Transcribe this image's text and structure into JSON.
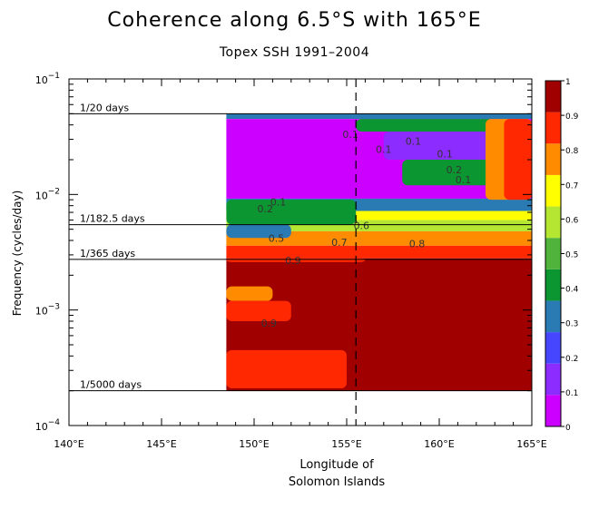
{
  "chart_data": {
    "type": "heatmap",
    "title": "Coherence along 6.5°S with 165°E",
    "subtitle": "Topex SSH 1991–2004",
    "xlabel_lines": [
      "Longitude of",
      "Solomon Islands"
    ],
    "ylabel": "Frequency (cycles/day)",
    "x_range": [
      140,
      165
    ],
    "y_range": [
      0.0001,
      0.1
    ],
    "y_scale": "log",
    "x_ticks": [
      {
        "value": 140,
        "label": "140°E"
      },
      {
        "value": 145,
        "label": "145°E"
      },
      {
        "value": 150,
        "label": "150°E"
      },
      {
        "value": 155,
        "label": "155°E"
      },
      {
        "value": 160,
        "label": "160°E"
      },
      {
        "value": 165,
        "label": "165°E"
      }
    ],
    "y_ticks": [
      {
        "value": 0.1,
        "base": "10",
        "exp": "−1"
      },
      {
        "value": 0.01,
        "base": "10",
        "exp": "−2"
      },
      {
        "value": 0.001,
        "base": "10",
        "exp": "−3"
      },
      {
        "value": 0.0001,
        "base": "10",
        "exp": "−4"
      }
    ],
    "period_lines": [
      {
        "freq": 0.05,
        "label": "1/20 days"
      },
      {
        "freq": 0.00548,
        "label": "1/182.5 days"
      },
      {
        "freq": 0.00274,
        "label": "1/365 days"
      },
      {
        "freq": 0.0002,
        "label": "1/5000 days"
      }
    ],
    "vertical_line_lon": 155.5,
    "data_lon_range": [
      148.5,
      165
    ],
    "data_freq_range": [
      0.0002,
      0.05
    ],
    "colorbar": {
      "levels": [
        0,
        0.1,
        0.2,
        0.3,
        0.4,
        0.5,
        0.6,
        0.7,
        0.8,
        0.9,
        1
      ],
      "labels": [
        "0",
        "0.1",
        "0.2",
        "0.3",
        "0.4",
        "0.5",
        "0.6",
        "0.7",
        "0.8",
        "0.9",
        "1"
      ],
      "colors": [
        "#cc00ff",
        "#8c2cff",
        "#4646ff",
        "#2a7ab4",
        "#0c9632",
        "#50b43c",
        "#b4e632",
        "#ffff00",
        "#ff8c00",
        "#ff2800",
        "#a00000"
      ]
    },
    "bands": [
      {
        "f_hi": 0.05,
        "f_lo": 0.045,
        "level": 3
      },
      {
        "f_hi": 0.045,
        "f_lo": 0.0092,
        "level": 0
      },
      {
        "f_hi": 0.0092,
        "f_lo": 0.0072,
        "level": 3
      },
      {
        "f_hi": 0.0072,
        "f_lo": 0.006,
        "level": 7
      },
      {
        "f_hi": 0.006,
        "f_lo": 0.0048,
        "level": 6
      },
      {
        "f_hi": 0.0048,
        "f_lo": 0.0036,
        "level": 8
      },
      {
        "f_hi": 0.0036,
        "f_lo": 0.0028,
        "level": 9
      },
      {
        "f_hi": 0.0028,
        "f_lo": 0.0002,
        "level": 10
      }
    ],
    "patches": [
      {
        "lon": [
          148.5,
          156
        ],
        "f": [
          0.0028,
          0.0026
        ],
        "level": 9
      },
      {
        "lon": [
          148.5,
          151
        ],
        "f": [
          0.0016,
          0.0012
        ],
        "level": 8
      },
      {
        "lon": [
          148.5,
          152
        ],
        "f": [
          0.0012,
          0.0008
        ],
        "level": 9
      },
      {
        "lon": [
          148.5,
          155
        ],
        "f": [
          0.00045,
          0.00021
        ],
        "level": 9
      },
      {
        "lon": [
          148.5,
          155.5
        ],
        "f": [
          0.009,
          0.0055
        ],
        "level": 4
      },
      {
        "lon": [
          148.5,
          152
        ],
        "f": [
          0.0055,
          0.0042
        ],
        "level": 3
      },
      {
        "lon": [
          155.5,
          163
        ],
        "f": [
          0.045,
          0.035
        ],
        "level": 4
      },
      {
        "lon": [
          157,
          163
        ],
        "f": [
          0.035,
          0.02
        ],
        "level": 1
      },
      {
        "lon": [
          158,
          163
        ],
        "f": [
          0.02,
          0.012
        ],
        "level": 4
      },
      {
        "lon": [
          162.5,
          165
        ],
        "f": [
          0.045,
          0.009
        ],
        "level": 8
      },
      {
        "lon": [
          163.5,
          165
        ],
        "f": [
          0.045,
          0.009
        ],
        "level": 9
      }
    ],
    "contour_labels": [
      {
        "lon": 155.2,
        "f": 0.031,
        "text": "0.1"
      },
      {
        "lon": 158.6,
        "f": 0.027,
        "text": "0.1"
      },
      {
        "lon": 157.0,
        "f": 0.023,
        "text": "0.1"
      },
      {
        "lon": 160.3,
        "f": 0.021,
        "text": "0.1"
      },
      {
        "lon": 161.3,
        "f": 0.0125,
        "text": "0.1"
      },
      {
        "lon": 160.8,
        "f": 0.0152,
        "text": "0.2"
      },
      {
        "lon": 151.3,
        "f": 0.008,
        "text": "0.1"
      },
      {
        "lon": 150.6,
        "f": 0.007,
        "text": "0.2"
      },
      {
        "lon": 151.2,
        "f": 0.0039,
        "text": "0.5"
      },
      {
        "lon": 155.8,
        "f": 0.005,
        "text": "0.6"
      },
      {
        "lon": 154.6,
        "f": 0.0036,
        "text": "0.7"
      },
      {
        "lon": 158.8,
        "f": 0.0035,
        "text": "0.8"
      },
      {
        "lon": 152.1,
        "f": 0.0025,
        "text": "0.9"
      },
      {
        "lon": 150.8,
        "f": 0.00072,
        "text": "0.9"
      }
    ]
  }
}
